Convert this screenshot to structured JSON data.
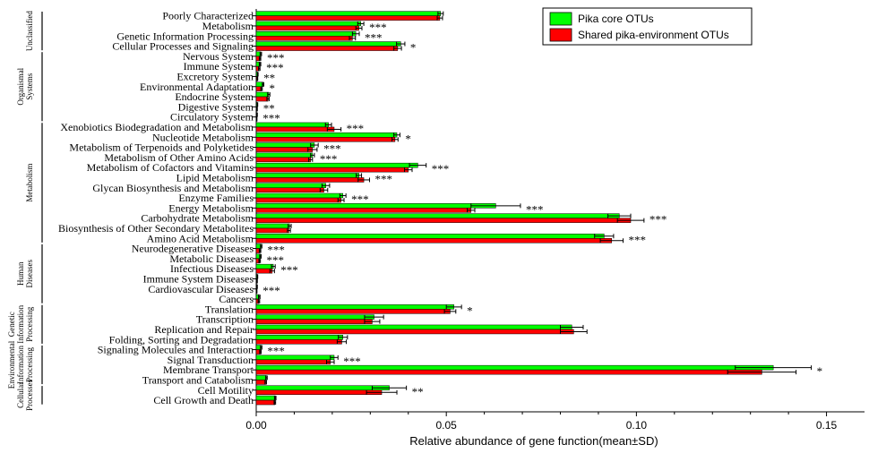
{
  "chart_data": {
    "type": "bar",
    "orientation": "horizontal",
    "xlabel": "Relative abundance of gene function(mean±SD)",
    "xlim": [
      0,
      0.16
    ],
    "xticks": [
      0.0,
      0.05,
      0.1,
      0.15
    ],
    "xtick_labels": [
      "0.00",
      "0.05",
      "0.10",
      "0.15"
    ],
    "legend_position": "top-right",
    "series": [
      {
        "name": "Pika core OTUs",
        "color": "#00ff00"
      },
      {
        "name": "Shared pika-environment OTUs",
        "color": "#ff0000"
      }
    ],
    "groups": [
      {
        "name": "Unclassified",
        "categories": [
          {
            "label": "Poorly Characterized",
            "green": 0.0485,
            "green_sd": 0.0007,
            "red": 0.0483,
            "red_sd": 0.0007,
            "sig": ""
          },
          {
            "label": "Metabolism",
            "green": 0.0275,
            "green_sd": 0.0008,
            "red": 0.027,
            "red_sd": 0.0008,
            "sig": "***"
          },
          {
            "label": "Genetic Information Processing",
            "green": 0.0262,
            "green_sd": 0.0009,
            "red": 0.0253,
            "red_sd": 0.0008,
            "sig": "***"
          },
          {
            "label": "Cellular Processes and Signaling",
            "green": 0.038,
            "green_sd": 0.0011,
            "red": 0.0372,
            "red_sd": 0.001,
            "sig": "*"
          }
        ]
      },
      {
        "name": "Organismal Systems",
        "categories": [
          {
            "label": "Nervous System",
            "green": 0.0012,
            "green_sd": 0.0002,
            "red": 0.001,
            "red_sd": 0.0002,
            "sig": "***"
          },
          {
            "label": "Immune System",
            "green": 0.001,
            "green_sd": 0.0002,
            "red": 0.0008,
            "red_sd": 0.0002,
            "sig": "***"
          },
          {
            "label": "Excretory System",
            "green": 0.0004,
            "green_sd": 0.0001,
            "red": 0.0003,
            "red_sd": 0.0001,
            "sig": "**"
          },
          {
            "label": "Environmental Adaptation",
            "green": 0.0018,
            "green_sd": 0.0002,
            "red": 0.0014,
            "red_sd": 0.0002,
            "sig": "*"
          },
          {
            "label": "Endocrine System",
            "green": 0.0033,
            "green_sd": 0.0003,
            "red": 0.0031,
            "red_sd": 0.0003,
            "sig": ""
          },
          {
            "label": "Digestive System",
            "green": 0.0003,
            "green_sd": 0.0001,
            "red": 0.0002,
            "red_sd": 0.0001,
            "sig": "**"
          },
          {
            "label": "Circulatory System",
            "green": 0.0002,
            "green_sd": 0.0001,
            "red": 0.0001,
            "red_sd": 0.0001,
            "sig": "***"
          }
        ]
      },
      {
        "name": "Metabolism",
        "categories": [
          {
            "label": "Xenobiotics Biodegradation and Metabolism",
            "green": 0.019,
            "green_sd": 0.0008,
            "red": 0.0205,
            "red_sd": 0.0018,
            "sig": "***"
          },
          {
            "label": "Nucleotide Metabolism",
            "green": 0.037,
            "green_sd": 0.0008,
            "red": 0.0365,
            "red_sd": 0.0008,
            "sig": "*"
          },
          {
            "label": "Metabolism of Terpenoids and Polyketides",
            "green": 0.0153,
            "green_sd": 0.001,
            "red": 0.0148,
            "red_sd": 0.0012,
            "sig": "***"
          },
          {
            "label": "Metabolism of Other Amino Acids",
            "green": 0.0148,
            "green_sd": 0.0005,
            "red": 0.0143,
            "red_sd": 0.0005,
            "sig": "***"
          },
          {
            "label": "Metabolism of Cofactors and Vitamins",
            "green": 0.0425,
            "green_sd": 0.0022,
            "red": 0.04,
            "red_sd": 0.001,
            "sig": "***"
          },
          {
            "label": "Lipid Metabolism",
            "green": 0.027,
            "green_sd": 0.0007,
            "red": 0.0283,
            "red_sd": 0.0015,
            "sig": "***"
          },
          {
            "label": "Glycan Biosynthesis and Metabolism",
            "green": 0.0183,
            "green_sd": 0.001,
            "red": 0.0178,
            "red_sd": 0.001,
            "sig": ""
          },
          {
            "label": "Enzyme Families",
            "green": 0.0228,
            "green_sd": 0.0008,
            "red": 0.0223,
            "red_sd": 0.0008,
            "sig": "***"
          },
          {
            "label": "Energy Metabolism",
            "green": 0.063,
            "green_sd": 0.0065,
            "red": 0.0565,
            "red_sd": 0.001,
            "sig": "***"
          },
          {
            "label": "Carbohydrate Metabolism",
            "green": 0.0955,
            "green_sd": 0.003,
            "red": 0.0985,
            "red_sd": 0.0035,
            "sig": "***"
          },
          {
            "label": "Biosynthesis of Other Secondary Metabolites",
            "green": 0.0088,
            "green_sd": 0.0004,
            "red": 0.0086,
            "red_sd": 0.0004,
            "sig": ""
          },
          {
            "label": "Amino Acid Metabolism",
            "green": 0.0915,
            "green_sd": 0.0025,
            "red": 0.0935,
            "red_sd": 0.003,
            "sig": "***"
          }
        ]
      },
      {
        "name": "Human Diseases",
        "categories": [
          {
            "label": "Neurodegenerative Diseases",
            "green": 0.0013,
            "green_sd": 0.0002,
            "red": 0.001,
            "red_sd": 0.0002,
            "sig": "***"
          },
          {
            "label": "Metabolic Diseases",
            "green": 0.0011,
            "green_sd": 0.0002,
            "red": 0.0009,
            "red_sd": 0.0002,
            "sig": "***"
          },
          {
            "label": "Infectious Diseases",
            "green": 0.0045,
            "green_sd": 0.0005,
            "red": 0.0042,
            "red_sd": 0.0006,
            "sig": "***"
          },
          {
            "label": "Immune System Diseases",
            "green": 0.0003,
            "green_sd": 0.0001,
            "red": 0.0002,
            "red_sd": 0.0001,
            "sig": ""
          },
          {
            "label": "Cardiovascular Diseases",
            "green": 0.0002,
            "green_sd": 0.0001,
            "red": 0.0001,
            "red_sd": 0.0001,
            "sig": "***"
          },
          {
            "label": "Cancers",
            "green": 0.0008,
            "green_sd": 0.0002,
            "red": 0.0007,
            "red_sd": 0.0002,
            "sig": ""
          }
        ]
      },
      {
        "name": "Genetic Information Processing",
        "categories": [
          {
            "label": "Translation",
            "green": 0.052,
            "green_sd": 0.002,
            "red": 0.051,
            "red_sd": 0.0015,
            "sig": "*"
          },
          {
            "label": "Transcription",
            "green": 0.031,
            "green_sd": 0.0025,
            "red": 0.0305,
            "red_sd": 0.002,
            "sig": ""
          },
          {
            "label": "Replication and Repair",
            "green": 0.083,
            "green_sd": 0.003,
            "red": 0.0835,
            "red_sd": 0.0035,
            "sig": ""
          },
          {
            "label": "Folding, Sorting and Degradation",
            "green": 0.0228,
            "green_sd": 0.0012,
            "red": 0.0225,
            "red_sd": 0.0012,
            "sig": ""
          }
        ]
      },
      {
        "name": "Environmental Information Processing",
        "categories": [
          {
            "label": "Signaling Molecules and Interaction",
            "green": 0.0013,
            "green_sd": 0.0002,
            "red": 0.0011,
            "red_sd": 0.0002,
            "sig": "***"
          },
          {
            "label": "Signal Transduction",
            "green": 0.0205,
            "green_sd": 0.001,
            "red": 0.0195,
            "red_sd": 0.001,
            "sig": "***"
          },
          {
            "label": "Membrane Transport",
            "green": 0.136,
            "green_sd": 0.01,
            "red": 0.133,
            "red_sd": 0.009,
            "sig": "*"
          },
          {
            "label": "Transport and Catabolism",
            "green": 0.0027,
            "green_sd": 0.0002,
            "red": 0.0025,
            "red_sd": 0.0002,
            "sig": ""
          }
        ]
      },
      {
        "name": "Cellular Processes",
        "categories": [
          {
            "label": "Cell Motility",
            "green": 0.035,
            "green_sd": 0.0045,
            "red": 0.033,
            "red_sd": 0.004,
            "sig": "**"
          },
          {
            "label": "Cell Growth and Death",
            "green": 0.005,
            "green_sd": 0.0002,
            "red": 0.0049,
            "red_sd": 0.0002,
            "sig": ""
          }
        ]
      }
    ],
    "group_label_lines": {
      "Unclassified": [
        "Unclassified"
      ],
      "Organismal Systems": [
        "Organismal",
        "Systems"
      ],
      "Metabolism": [
        "Metabolism"
      ],
      "Human Diseases": [
        "Human",
        "Diseases"
      ],
      "Genetic Information Processing": [
        "Genetic",
        "Information",
        "Processing"
      ],
      "Environmental Information Processing": [
        "Environmental",
        "Information",
        "Processing"
      ],
      "Cellular Processes": [
        "Cellular",
        "Processes"
      ]
    }
  }
}
